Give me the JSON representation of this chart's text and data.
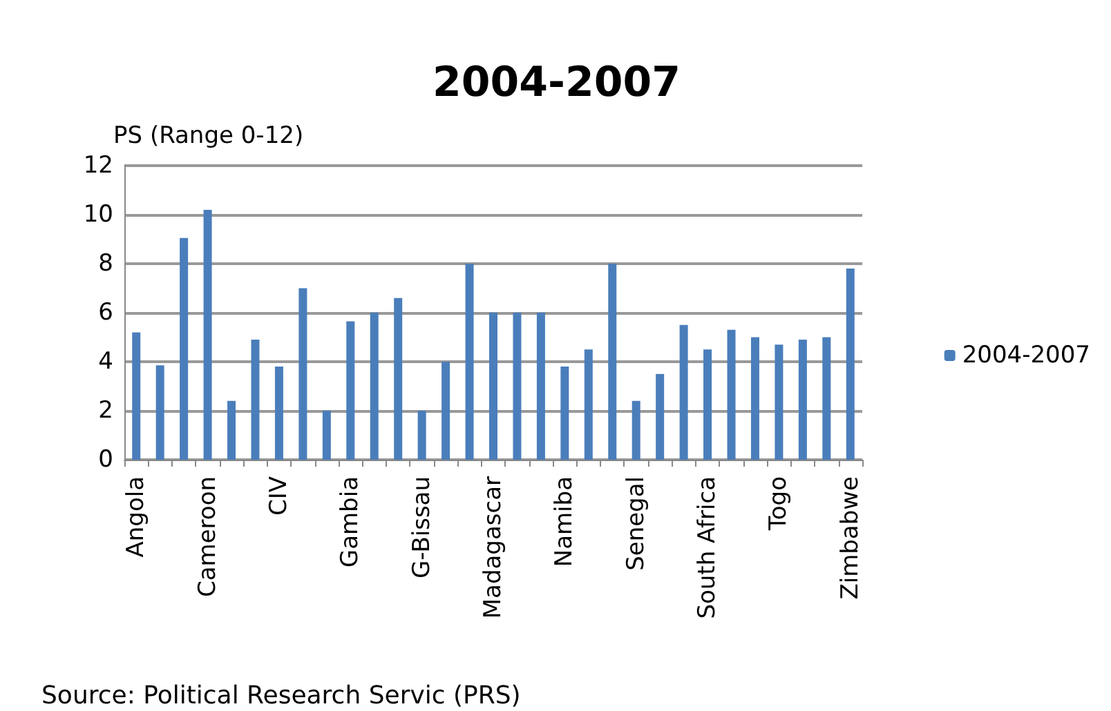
{
  "chart_data": {
    "type": "bar",
    "title": "2004-2007",
    "ylabel": "PS (Range 0-12)",
    "categories": [
      "Angola",
      null,
      null,
      "Cameroon",
      null,
      null,
      "CIV",
      null,
      null,
      "Gambia",
      null,
      null,
      "G-Bissau",
      null,
      null,
      "Madagascar",
      null,
      null,
      "Namiba",
      null,
      null,
      "Senegal",
      null,
      null,
      "South Africa",
      null,
      null,
      "Togo",
      null,
      null,
      "Zimbabwe"
    ],
    "series": [
      {
        "name": "2004-2007",
        "color": "#4a7ebb",
        "values": [
          5.2,
          3.85,
          9.05,
          10.2,
          2.4,
          4.9,
          3.8,
          7.0,
          2.0,
          5.65,
          6.0,
          6.6,
          2.0,
          4.0,
          8.0,
          6.0,
          6.0,
          6.0,
          3.8,
          4.5,
          8.0,
          2.4,
          3.5,
          5.5,
          4.5,
          5.3,
          5.0,
          4.7,
          4.9,
          5.0,
          7.8
        ]
      }
    ],
    "ylim": [
      0,
      12
    ],
    "yticks": [
      0,
      2,
      4,
      6,
      8,
      10,
      12
    ],
    "grid": "y",
    "legend": "right",
    "annotations": [
      "Source: Political Research Servic (PRS)"
    ]
  }
}
